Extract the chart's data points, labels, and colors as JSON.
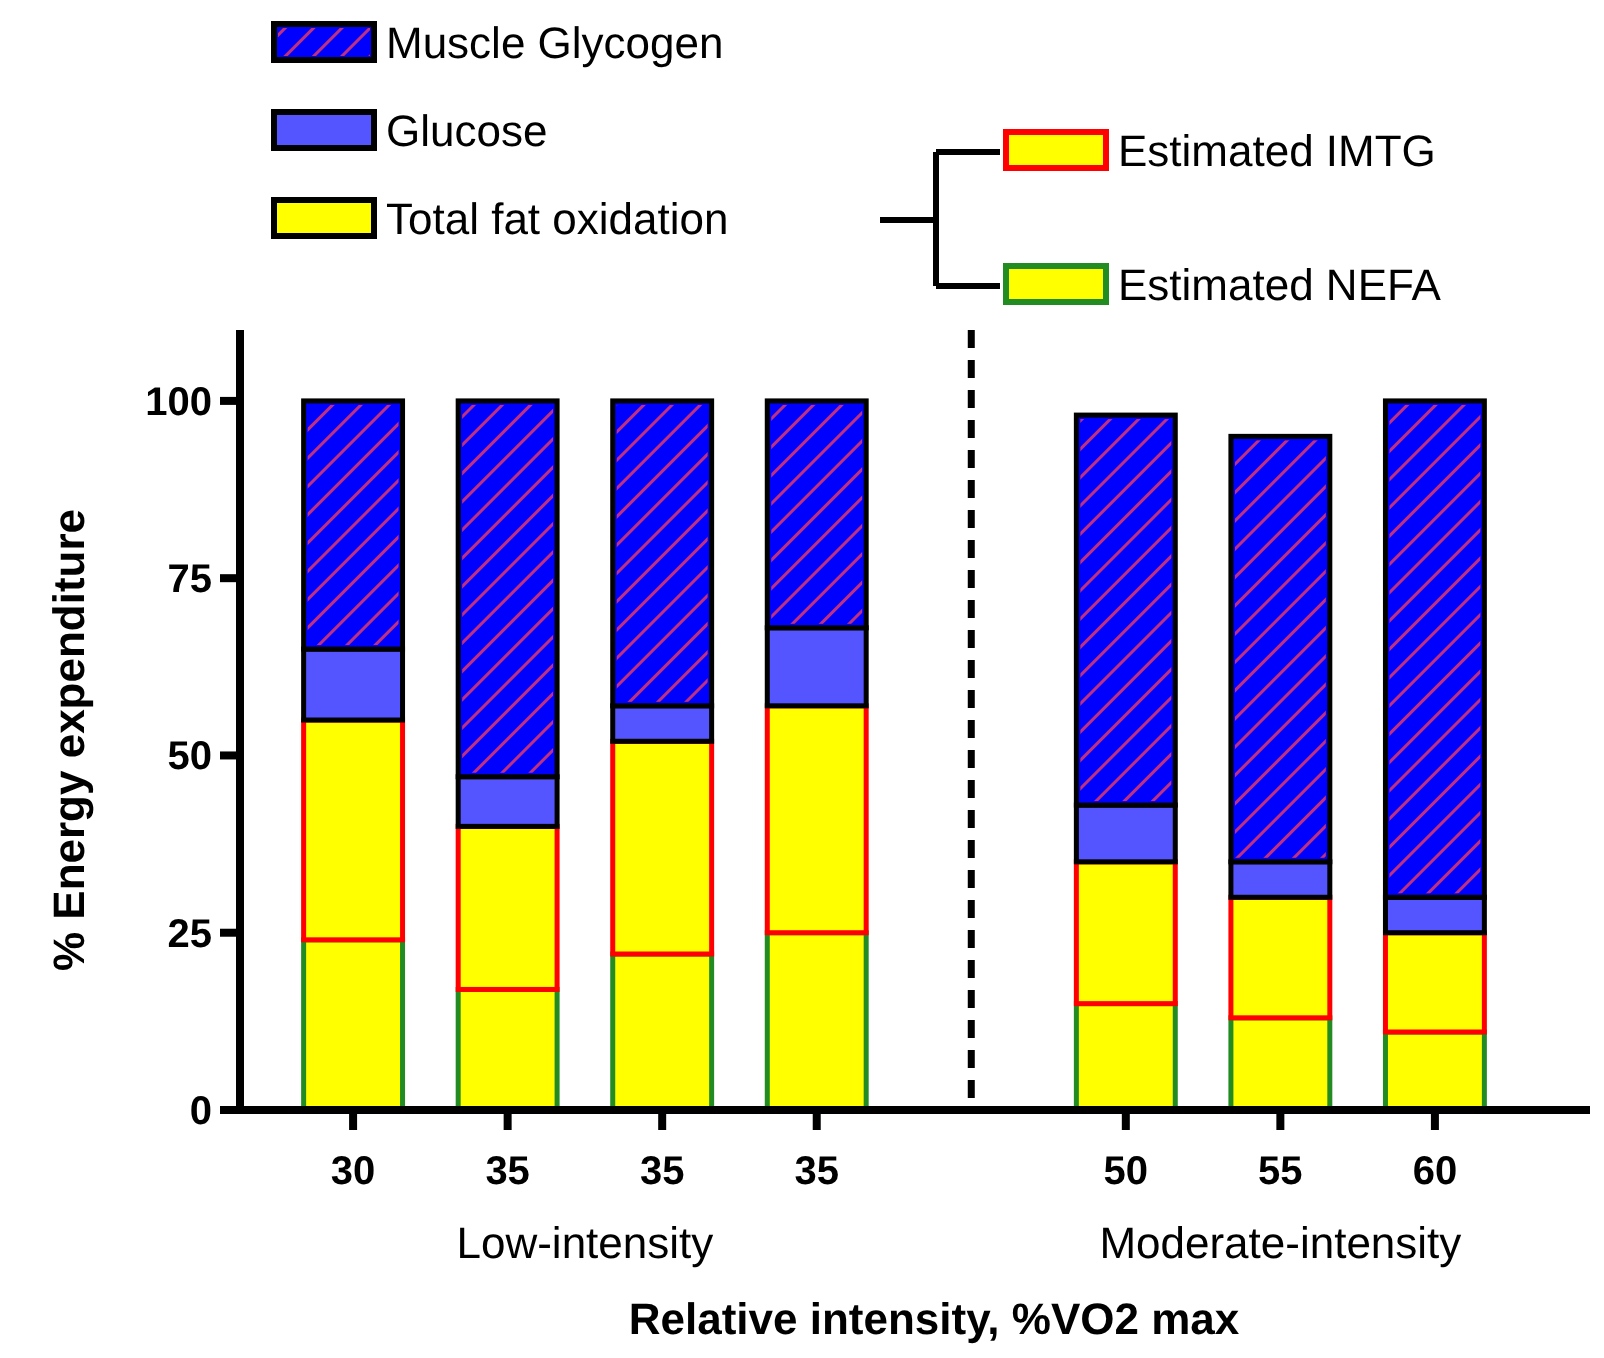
{
  "chart_data": {
    "type": "bar",
    "stacked": true,
    "categories": [
      "30",
      "35",
      "35",
      "35",
      null,
      "50",
      "55",
      "60"
    ],
    "series": [
      {
        "name": "Estimated NEFA",
        "color": "#ffff00",
        "values": [
          24,
          17,
          22,
          25,
          null,
          15,
          13,
          11
        ]
      },
      {
        "name": "Estimated IMTG",
        "color": "#ffff00",
        "values": [
          31,
          23,
          30,
          32,
          null,
          20,
          17,
          14
        ]
      },
      {
        "name": "Glucose",
        "color": "#5555ff",
        "values": [
          10,
          7,
          5,
          11,
          null,
          8,
          5,
          5
        ]
      },
      {
        "name": "Muscle Glycogen",
        "color": "#0000ff",
        "values": [
          35,
          53,
          43,
          32,
          null,
          55,
          60,
          70
        ]
      }
    ],
    "legend_title": "Total fat oxidation",
    "legend": "top",
    "ylim": [
      0,
      110
    ],
    "yticks": [
      0,
      25,
      50,
      75,
      100
    ],
    "ylabel": "% Energy expenditure",
    "xlabel": "Relative intensity, %VO2 max",
    "annotations": [
      "Low-intensity",
      "Moderate-intensity"
    ]
  }
}
